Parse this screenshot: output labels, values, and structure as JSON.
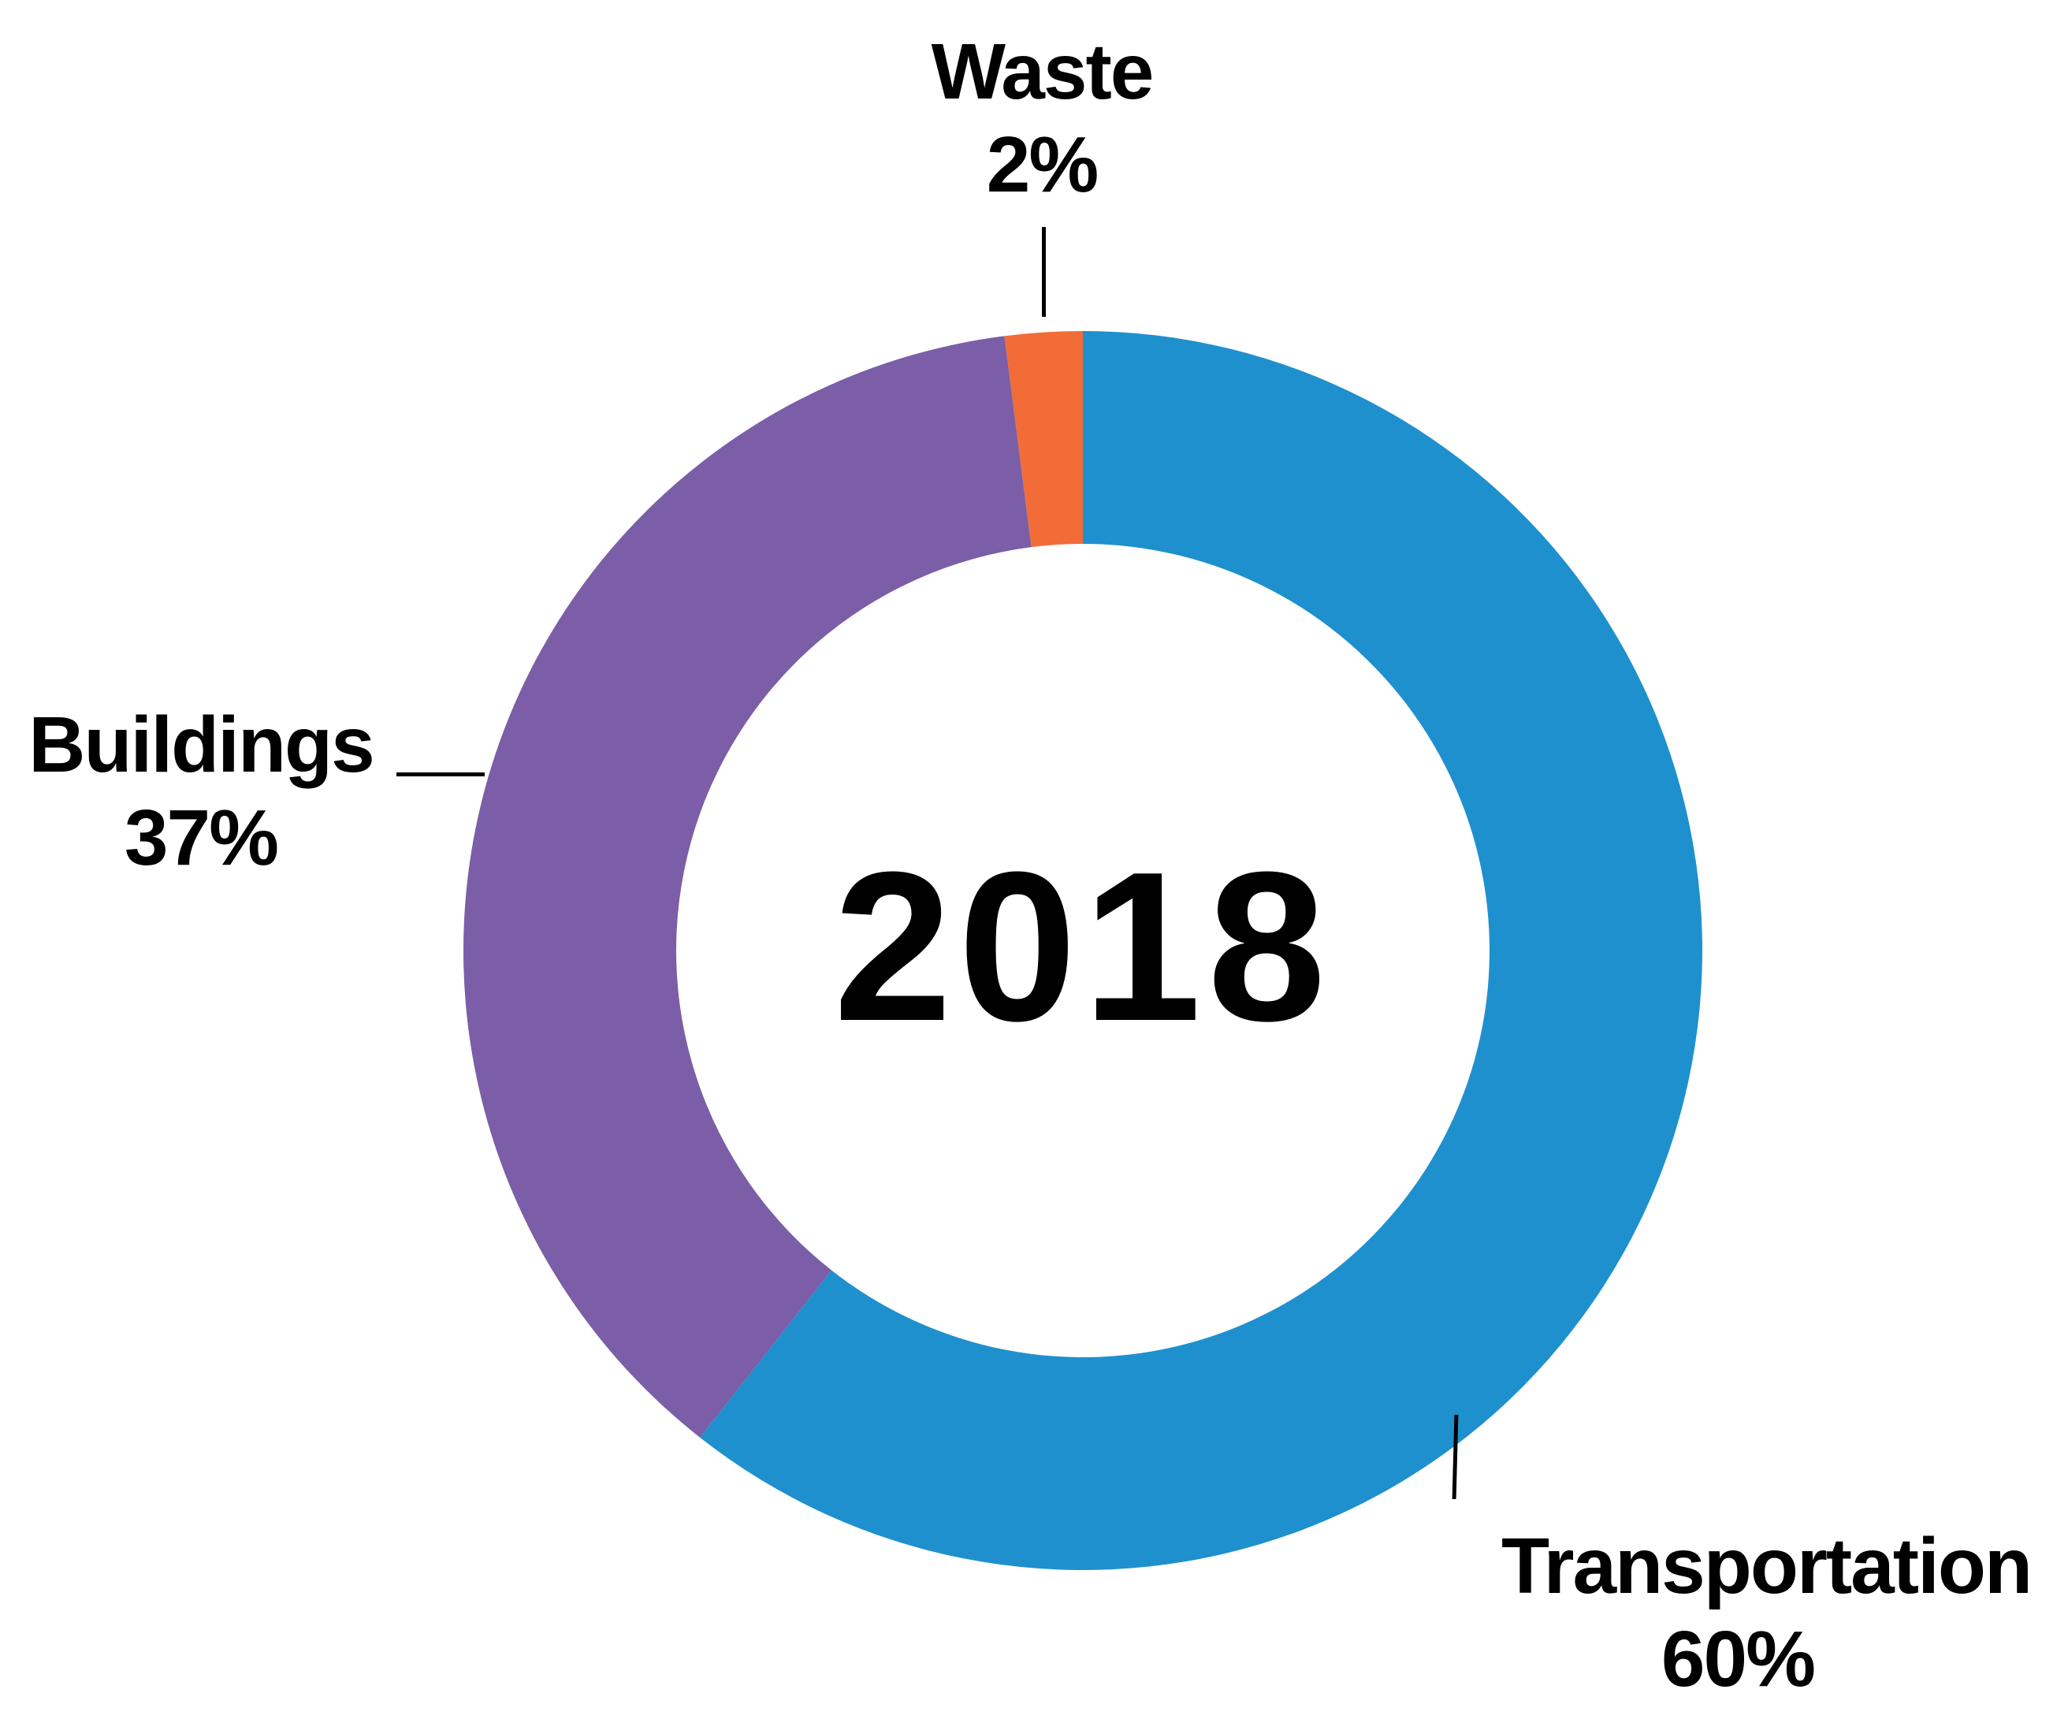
{
  "chart_data": {
    "type": "pie",
    "subtype": "donut",
    "center_label": "2018",
    "segments": [
      {
        "label": "Transportation",
        "value": 60,
        "percent_label": "60%",
        "color": "#1F90CE"
      },
      {
        "label": "Buildings",
        "value": 37,
        "percent_label": "37%",
        "color": "#7B5EA7"
      },
      {
        "label": "Waste",
        "value": 2,
        "percent_label": "2%",
        "color": "#F26C38"
      }
    ],
    "start_angle_deg": 0,
    "direction": "clockwise",
    "legend_position": "outside-callouts",
    "leader_line_color": "#000000",
    "label_text_color": "#000000",
    "background": "#FFFFFF"
  }
}
